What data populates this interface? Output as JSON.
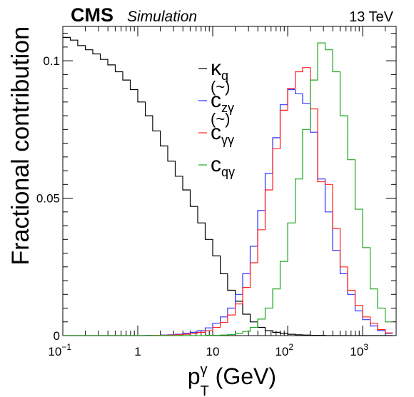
{
  "chart_data": {
    "type": "histogram-step",
    "header": {
      "experiment": "CMS",
      "tag": "Simulation",
      "energy": "13 TeV"
    },
    "xlabel": {
      "base": "p",
      "sup": "γ",
      "sub": "T",
      "unit": " (GeV)"
    },
    "ylabel": "Fractional contribution",
    "x_scale": "log",
    "xlim": [
      0.1,
      2800
    ],
    "ylim": [
      0,
      0.1125
    ],
    "x_ticks": [
      {
        "value": 0.1,
        "base": "10",
        "exp": "−1"
      },
      {
        "value": 1,
        "base": "1",
        "exp": ""
      },
      {
        "value": 10,
        "base": "10",
        "exp": ""
      },
      {
        "value": 100,
        "base": "10",
        "exp": "2"
      },
      {
        "value": 1000,
        "base": "10",
        "exp": "3"
      }
    ],
    "y_ticks": [
      {
        "value": 0,
        "label": "0"
      },
      {
        "value": 0.05,
        "label": "0.05"
      },
      {
        "value": 0.1,
        "label": "0.1"
      }
    ],
    "bin_edges": [
      0.1,
      0.126,
      0.158,
      0.2,
      0.251,
      0.316,
      0.398,
      0.501,
      0.631,
      0.794,
      1.0,
      1.26,
      1.58,
      2.0,
      2.51,
      3.16,
      3.98,
      5.01,
      6.31,
      7.94,
      10.0,
      12.6,
      15.8,
      20.0,
      25.1,
      31.6,
      39.8,
      50.1,
      63.1,
      79.4,
      100,
      126,
      158,
      200,
      251,
      316,
      398,
      501,
      631,
      794,
      1000,
      1260,
      1580,
      2000,
      2510
    ],
    "series": [
      {
        "name": "κ_q",
        "label_main": "κ",
        "label_sub": "q",
        "tilde": false,
        "color": "#000000",
        "values": [
          0.1085,
          0.1075,
          0.1055,
          0.104,
          0.1025,
          0.1005,
          0.0985,
          0.096,
          0.093,
          0.0895,
          0.085,
          0.08,
          0.0745,
          0.069,
          0.0635,
          0.058,
          0.053,
          0.047,
          0.041,
          0.035,
          0.029,
          0.0225,
          0.0165,
          0.0125,
          0.0078,
          0.005,
          0.003,
          0.0018,
          0.0012,
          0.0008,
          0.0005,
          0.0003,
          0.0002,
          0.0001,
          0.0001,
          0.0,
          0.0,
          0.0,
          0.0,
          0.0,
          0.0,
          0.0,
          0.0,
          0.0
        ]
      },
      {
        "name": "c̃_zγ",
        "label_main": "c",
        "label_sub": "zγ",
        "tilde": true,
        "color": "#3333ff",
        "values": [
          0.0,
          0.0,
          0.0,
          0.0,
          0.0,
          0.0,
          0.0,
          0.0,
          0.0,
          0.0,
          0.0,
          0.0001,
          0.0001,
          0.0002,
          0.0003,
          0.0005,
          0.0008,
          0.0012,
          0.0018,
          0.0028,
          0.0045,
          0.0068,
          0.01,
          0.015,
          0.0225,
          0.0325,
          0.0455,
          0.059,
          0.072,
          0.084,
          0.0895,
          0.088,
          0.0845,
          0.074,
          0.057,
          0.045,
          0.031,
          0.0225,
          0.015,
          0.009,
          0.0058,
          0.0035,
          0.0018,
          0.0008
        ]
      },
      {
        "name": "c̃_γγ",
        "label_main": "c",
        "label_sub": "γγ",
        "tilde": true,
        "color": "#ff2222",
        "values": [
          0.0,
          0.0,
          0.0,
          0.0,
          0.0,
          0.0,
          0.0,
          0.0,
          0.0,
          0.0,
          0.0,
          0.0,
          0.0001,
          0.0001,
          0.0002,
          0.0003,
          0.0005,
          0.0008,
          0.0012,
          0.0018,
          0.003,
          0.0048,
          0.0075,
          0.0115,
          0.0175,
          0.0265,
          0.0385,
          0.053,
          0.068,
          0.082,
          0.09,
          0.096,
          0.0975,
          0.0825,
          0.056,
          0.055,
          0.039,
          0.025,
          0.0165,
          0.011,
          0.0068,
          0.0045,
          0.0022,
          0.001
        ]
      },
      {
        "name": "c_qγ",
        "label_main": "c",
        "label_sub": "qγ",
        "tilde": false,
        "color": "#22aa22",
        "values": [
          0.0,
          0.0,
          0.0,
          0.0,
          0.0,
          0.0,
          0.0,
          0.0,
          0.0,
          0.0,
          0.0,
          0.0,
          0.0,
          0.0,
          0.0,
          0.0,
          0.0,
          0.0,
          0.0,
          0.0001,
          0.0001,
          0.0002,
          0.0004,
          0.0008,
          0.0015,
          0.003,
          0.006,
          0.01,
          0.017,
          0.027,
          0.041,
          0.057,
          0.075,
          0.093,
          0.1065,
          0.104,
          0.096,
          0.08,
          0.064,
          0.046,
          0.032,
          0.017,
          0.01,
          0.005
        ]
      }
    ],
    "legend_position": "top-center"
  }
}
